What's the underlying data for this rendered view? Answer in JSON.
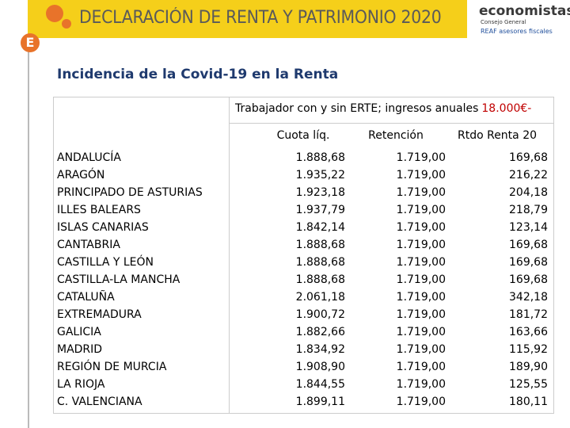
{
  "banner": {
    "title": "DECLARACIÓN DE RENTA Y PATRIMONIO 2020",
    "logo": "economistas",
    "logo_sub": "Consejo General",
    "logo_reaf": "REAF asesores fiscales"
  },
  "subtitle": "Incidencia de la Covid-19 en la Renta",
  "table": {
    "caption": "Trabajador con y sin ERTE; ingresos anuales",
    "caption_highlight": "18.000€-",
    "columns": [
      "Cuota líq.",
      "Retención",
      "Rtdo Renta 20"
    ],
    "rows": [
      [
        "ANDALUCÍA",
        "1.888,68",
        "1.719,00",
        "169,68"
      ],
      [
        "ARAGÓN",
        "1.935,22",
        "1.719,00",
        "216,22"
      ],
      [
        "PRINCIPADO DE ASTURIAS",
        "1.923,18",
        "1.719,00",
        "204,18"
      ],
      [
        "ILLES BALEARS",
        "1.937,79",
        "1.719,00",
        "218,79"
      ],
      [
        "ISLAS CANARIAS",
        "1.842,14",
        "1.719,00",
        "123,14"
      ],
      [
        "CANTABRIA",
        "1.888,68",
        "1.719,00",
        "169,68"
      ],
      [
        "CASTILLA Y LEÓN",
        "1.888,68",
        "1.719,00",
        "169,68"
      ],
      [
        "CASTILLA-LA MANCHA",
        "1.888,68",
        "1.719,00",
        "169,68"
      ],
      [
        "CATALUÑA",
        "2.061,18",
        "1.719,00",
        "342,18"
      ],
      [
        "EXTREMADURA",
        "1.900,72",
        "1.719,00",
        "181,72"
      ],
      [
        "GALICIA",
        "1.882,66",
        "1.719,00",
        "163,66"
      ],
      [
        "MADRID",
        "1.834,92",
        "1.719,00",
        "115,92"
      ],
      [
        "REGIÓN DE MURCIA",
        "1.908,90",
        "1.719,00",
        "189,90"
      ],
      [
        "LA RIOJA",
        "1.844,55",
        "1.719,00",
        "125,55"
      ],
      [
        "C. VALENCIANA",
        "1.899,11",
        "1.719,00",
        "180,11"
      ]
    ]
  }
}
